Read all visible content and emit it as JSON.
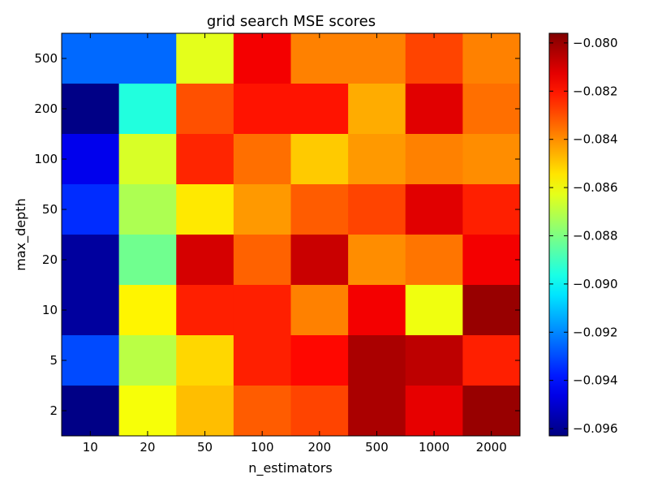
{
  "chart_data": {
    "type": "heatmap",
    "title": "grid search MSE scores",
    "xlabel": "n_estimators",
    "ylabel": "max_depth",
    "x_categories": [
      "10",
      "20",
      "50",
      "100",
      "200",
      "500",
      "1000",
      "2000"
    ],
    "y_categories": [
      "500",
      "200",
      "100",
      "50",
      "20",
      "10",
      "5",
      "2"
    ],
    "values": [
      [
        -0.0925,
        -0.0925,
        -0.0863,
        -0.0815,
        -0.0838,
        -0.0838,
        -0.0828,
        -0.0838
      ],
      [
        -0.0962,
        -0.0895,
        -0.083,
        -0.082,
        -0.082,
        -0.0845,
        -0.0812,
        -0.0835
      ],
      [
        -0.0945,
        -0.0865,
        -0.0823,
        -0.0835,
        -0.085,
        -0.0842,
        -0.0838,
        -0.084
      ],
      [
        -0.0935,
        -0.0872,
        -0.0855,
        -0.0842,
        -0.0832,
        -0.0828,
        -0.0812,
        -0.0822
      ],
      [
        -0.0958,
        -0.0882,
        -0.081,
        -0.0833,
        -0.0808,
        -0.084,
        -0.0836,
        -0.0815
      ],
      [
        -0.0958,
        -0.0857,
        -0.0822,
        -0.0822,
        -0.0838,
        -0.0815,
        -0.0861,
        -0.08
      ],
      [
        -0.093,
        -0.087,
        -0.0852,
        -0.0822,
        -0.0818,
        -0.0803,
        -0.0806,
        -0.0822
      ],
      [
        -0.0962,
        -0.086,
        -0.0848,
        -0.0832,
        -0.0828,
        -0.0803,
        -0.0813,
        -0.08
      ]
    ],
    "colormap": "jet",
    "vmin": -0.0963,
    "vmax": -0.0796,
    "colorbar": {
      "ticks": [
        -0.096,
        -0.094,
        -0.092,
        -0.09,
        -0.088,
        -0.086,
        -0.084,
        -0.082,
        -0.08
      ],
      "tick_labels": [
        "−0.096",
        "−0.094",
        "−0.092",
        "−0.090",
        "−0.088",
        "−0.086",
        "−0.084",
        "−0.082",
        "−0.080"
      ]
    },
    "grid": false,
    "legend": "none"
  }
}
